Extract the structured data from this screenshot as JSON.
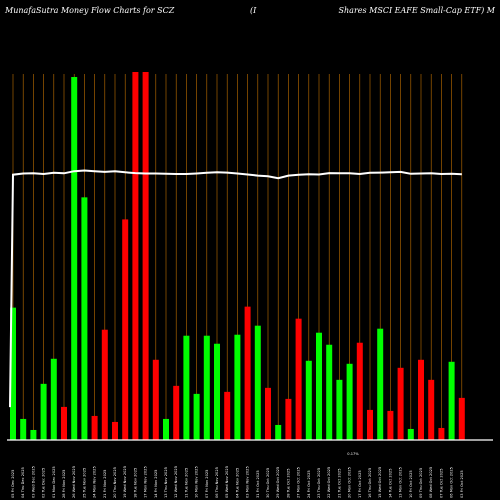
{
  "chart_data": {
    "type": "bar",
    "title_left": "MunafaSutra  Money Flow  Charts for SCZ",
    "title_mid": "(I",
    "title_right": "Shares MSCI EAFE Small-Cap ETF) M",
    "categories": [
      "05 Fri Dec 2025",
      "04 Thu Dec 2025",
      "03 Wed Dec 2025",
      "02 Tue Dec 2025",
      "01 Mon Dec 2025",
      "28 Fri Nov 2025",
      "26 Wed Nov 2025",
      "25 Tue Nov 2025",
      "24 Mon Nov 2025",
      "21 Fri Nov 2025",
      "20 Thu Nov 2025",
      "19 Wed Nov 2025",
      "18 Tue Nov 2025",
      "17 Mon Nov 2025",
      "14 Fri Nov 2025",
      "13 Thu Nov 2025",
      "12 Wed Nov 2025",
      "11 Tue Nov 2025",
      "10 Mon Nov 2025",
      "07 Fri Nov 2025",
      "06 Thu Nov 2025",
      "05 Wed Nov 2025",
      "04 Tue Nov 2025",
      "03 Mon Nov 2025",
      "31 Fri Oct 2025",
      "30 Thu Oct 2025",
      "29 Wed Oct 2025",
      "28 Tue Oct 2025",
      "27 Mon Oct 2025",
      "24 Fri Oct 2025",
      "23 Thu Oct 2025",
      "22 Wed Oct 2025",
      "21 Tue Oct 2025",
      "20 Mon Oct 2025",
      "17 Fri Oct 2025",
      "16 Thu Oct 2025",
      "15 Wed Oct 2025",
      "14 Tue Oct 2025",
      "13 Mon Oct 2025",
      "10 Fri Oct 2025",
      "09 Thu Oct 2025",
      "08 Wed Oct 2025",
      "07 Tue Oct 2025",
      "06 Mon Oct 2025",
      "03 Fri Oct 2025"
    ],
    "tick_labels": [
      "05 Fri Dec 2025",
      "04 Thu Dec 2025",
      "03 Wed Dec 2025",
      "02 Tue Dec 2025",
      "01 Mon Dec 2025",
      "28 Fri Nov 2025",
      "26 Wed Nov 2025",
      "25 Tue Nov 2025",
      "24 Mon Nov 2025",
      "21 Fri Nov 2025",
      "20 Thu Nov 2025",
      "19 Wed Nov 2025",
      "18 Tue Nov 2025",
      "17 Mon Nov 2025",
      "14 Fri Nov 2025",
      "13 Thu Nov 2025",
      "12 Wed Nov 2025",
      "11 Tue Nov 2025",
      "10 Mon Nov 2025",
      "07 Fri Nov 2025",
      "06 Thu Nov 2025",
      "05 Wed Nov 2025",
      "04 Tue Nov 2025",
      "03 Mon Nov 2025",
      "31 Fri Oct 2025",
      "30 Thu Oct 2025",
      "29 Wed Oct 2025",
      "28 Tue Oct 2025",
      "27 Mon Oct 2025",
      "24 Fri Oct 2025",
      "23 Thu Oct 2025",
      "22 Wed Oct 2025",
      "21 Tue Oct 2025",
      "20 Mon Oct 2025",
      "17 Fri Oct 2025",
      "16 Thu Oct 2025",
      "15 Wed Oct 2025",
      "14 Tue Oct 2025",
      "13 Mon Oct 2025",
      "10 Fri Oct 2025",
      "09 Thu Oct 2025",
      "08 Wed Oct 2025",
      "07 Tue Oct 2025",
      "06 Mon Oct 2025",
      "03 Fri Oct 2025"
    ],
    "extra_label": "0.17%",
    "bar_values": [
      132,
      21,
      10,
      56,
      81,
      33,
      362,
      242,
      24,
      110,
      18,
      220,
      367,
      367,
      80,
      21,
      54,
      104,
      46,
      104,
      96,
      48,
      105,
      133,
      114,
      52,
      15,
      41,
      121,
      79,
      107,
      95,
      60,
      76,
      97,
      30,
      111,
      29,
      72,
      11,
      80,
      60,
      12,
      78,
      42
    ],
    "bar_colors": [
      "green",
      "green",
      "green",
      "green",
      "green",
      "red",
      "green",
      "green",
      "red",
      "red",
      "red",
      "red",
      "red",
      "red",
      "red",
      "green",
      "red",
      "green",
      "green",
      "green",
      "green",
      "red",
      "green",
      "red",
      "green",
      "red",
      "green",
      "red",
      "red",
      "green",
      "green",
      "green",
      "green",
      "green",
      "red",
      "red",
      "green",
      "red",
      "red",
      "green",
      "red",
      "red",
      "red",
      "green",
      "red"
    ],
    "line_values": [
      3.0,
      3.5,
      3.6,
      3.3,
      3.8,
      3.6,
      4.5,
      4.8,
      4.5,
      4.2,
      4.5,
      4.0,
      3.7,
      3.5,
      3.5,
      3.4,
      3.3,
      3.3,
      3.5,
      3.8,
      4.0,
      3.9,
      3.5,
      3.1,
      2.6,
      2.3,
      1.5,
      2.6,
      3.0,
      3.2,
      3.1,
      3.7,
      3.6,
      3.6,
      3.3,
      3.8,
      3.9,
      4.0,
      4.2,
      3.4,
      3.5,
      3.6,
      3.3,
      3.4,
      3.2
    ],
    "line_start": -96,
    "ylim": [
      -110,
      5
    ],
    "bar_ylim": [
      0,
      367
    ],
    "colors": {
      "background": "#000000",
      "grid": "#c07000",
      "green": "#00ff00",
      "red": "#ff0000",
      "line": "#ffffff",
      "axis": "#ffffff",
      "text": "#ffffff"
    }
  }
}
